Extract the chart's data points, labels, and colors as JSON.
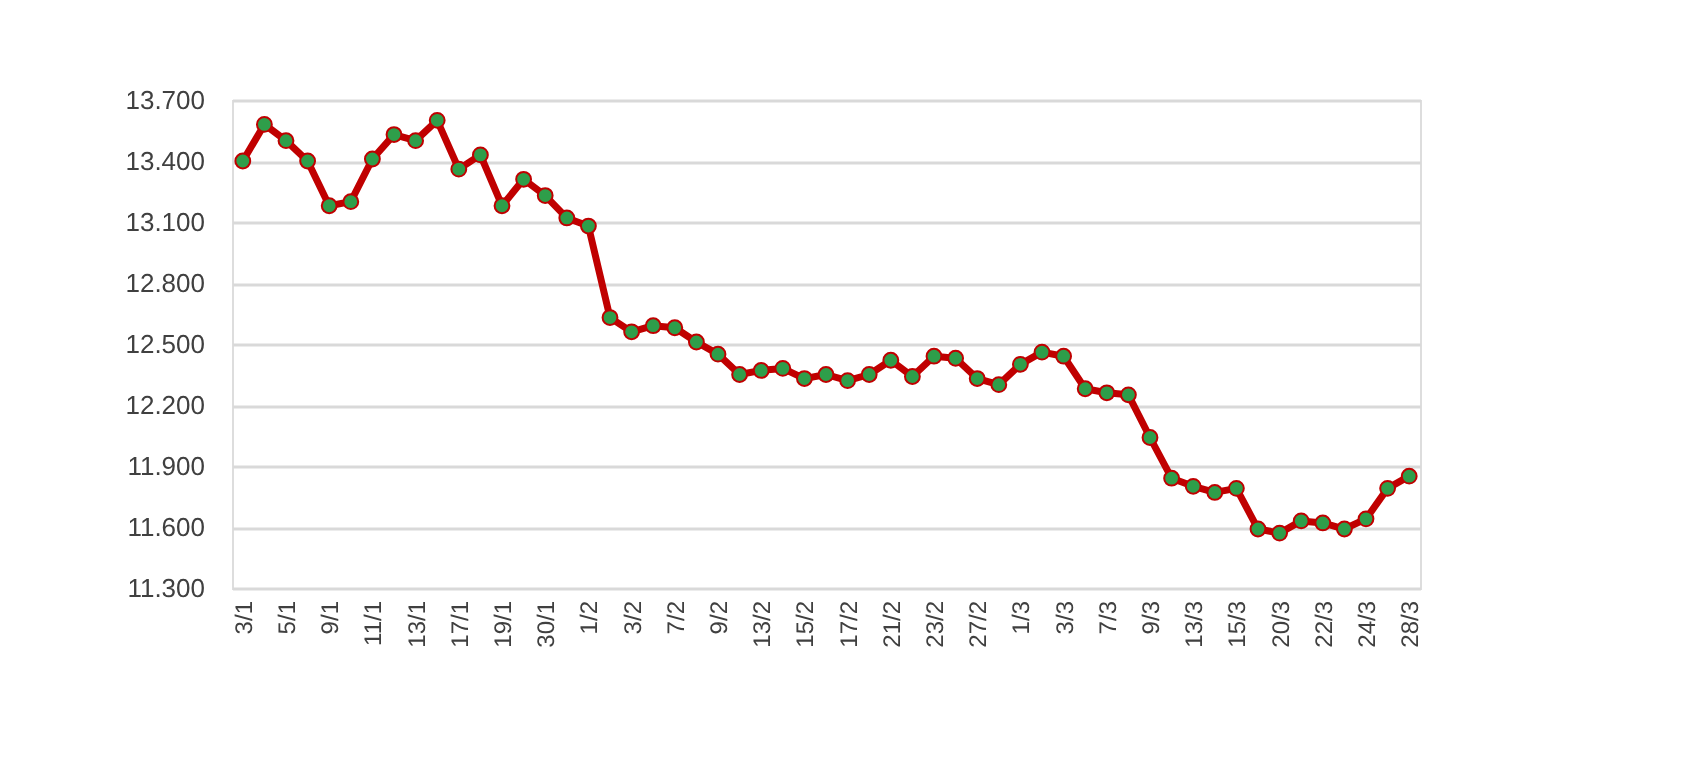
{
  "chart_data": {
    "type": "line",
    "categories": [
      "3/1",
      null,
      "5/1",
      null,
      "9/1",
      null,
      "11/1",
      null,
      "13/1",
      null,
      "17/1",
      null,
      "19/1",
      null,
      "30/1",
      null,
      "1/2",
      null,
      "3/2",
      null,
      "7/2",
      null,
      "9/2",
      null,
      "13/2",
      null,
      "15/2",
      null,
      "17/2",
      null,
      "21/2",
      null,
      "23/2",
      null,
      "27/2",
      null,
      "1/3",
      null,
      "3/3",
      null,
      "7/3",
      null,
      "9/3",
      null,
      "13/3",
      null,
      "15/3",
      null,
      "20/3",
      null,
      "22/3",
      null,
      "24/3",
      null,
      "28/3"
    ],
    "series": [
      {
        "color": "#c00000",
        "values": [
          13400,
          13580,
          13500,
          13400,
          13180,
          13200,
          13410,
          13530,
          13500,
          13600,
          13360,
          13430,
          13180,
          13310,
          13230,
          13120,
          13080,
          12630,
          12560,
          12590,
          12580,
          12510,
          12450,
          12350,
          12370,
          12380,
          12330,
          12350,
          12320,
          12350,
          12420,
          12340,
          12440,
          12430,
          12330,
          12300,
          12400,
          12460,
          12440,
          12280,
          12260,
          12250,
          12040,
          11840,
          11800,
          11770,
          11790,
          11590,
          11570,
          11630,
          11620,
          11590,
          11640,
          11790,
          11850
        ]
      }
    ],
    "ylim": [
      11300,
      13700
    ],
    "yticks": [
      {
        "value": 11300,
        "label": "11.300"
      },
      {
        "value": 11600,
        "label": "11.600"
      },
      {
        "value": 11900,
        "label": "11.900"
      },
      {
        "value": 12200,
        "label": "12.200"
      },
      {
        "value": 12500,
        "label": "12.500"
      },
      {
        "value": 12800,
        "label": "12.800"
      },
      {
        "value": 13100,
        "label": "13.100"
      },
      {
        "value": 13400,
        "label": "13.400"
      },
      {
        "value": 13700,
        "label": "13.700"
      }
    ],
    "grid": "y",
    "marker": "circle",
    "line_style": "solid"
  }
}
